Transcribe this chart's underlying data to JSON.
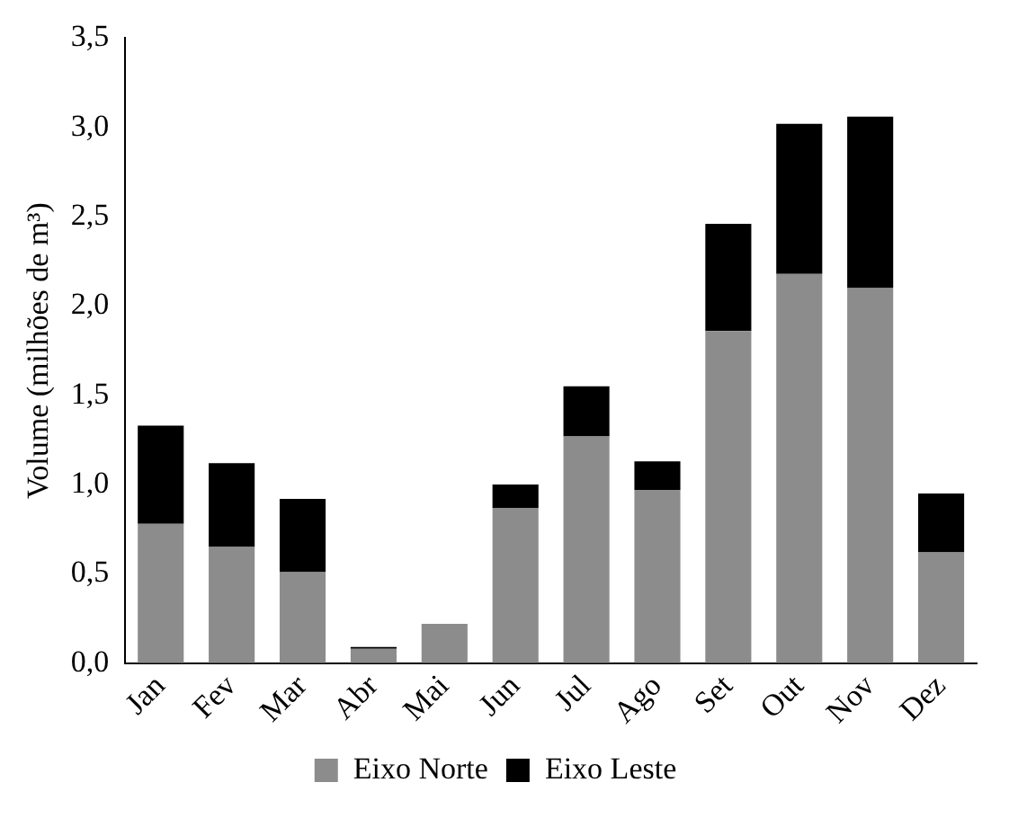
{
  "chart_data": {
    "type": "bar",
    "ylabel": "Volume (milhões de m³)",
    "stacked": true,
    "legend": "bottom",
    "grid": false,
    "categories": [
      "Jan",
      "Fev",
      "Mar",
      "Abr",
      "Mai",
      "Jun",
      "Jul",
      "Ago",
      "Set",
      "Out",
      "Nov",
      "Dez"
    ],
    "series": [
      {
        "name": "Eixo Norte",
        "color": "#8c8c8c",
        "values": [
          0.78,
          0.65,
          0.51,
          0.08,
          0.22,
          0.87,
          1.27,
          0.97,
          1.86,
          2.18,
          2.1,
          0.62
        ]
      },
      {
        "name": "Eixo Leste",
        "color": "#000000",
        "values": [
          0.55,
          0.47,
          0.41,
          0.01,
          0,
          0.13,
          0.28,
          0.16,
          0.6,
          0.84,
          0.96,
          0.33
        ]
      }
    ],
    "ylim": [
      0,
      3.5
    ],
    "yticks": [
      {
        "value": 0,
        "label": "0,0"
      },
      {
        "value": 0.5,
        "label": "0,5"
      },
      {
        "value": 1,
        "label": "1,0"
      },
      {
        "value": 1.5,
        "label": "1,5"
      },
      {
        "value": 2,
        "label": "2,0"
      },
      {
        "value": 2.5,
        "label": "2,5"
      },
      {
        "value": 3,
        "label": "3,0"
      },
      {
        "value": 3.5,
        "label": "3,5"
      }
    ]
  }
}
